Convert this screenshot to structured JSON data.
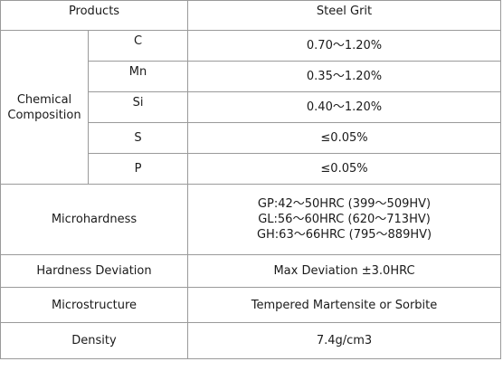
{
  "table": {
    "header": {
      "products": "Products",
      "steel_grit": "Steel Grit"
    },
    "chemical_composition": {
      "label_line1": "Chemical",
      "label_line2": "Composition",
      "elements": [
        {
          "symbol": "C",
          "value": "0.70～1.20%"
        },
        {
          "symbol": "Mn",
          "value": "0.35～1.20%"
        },
        {
          "symbol": "Si",
          "value": "0.40～1.20%"
        },
        {
          "symbol": "S",
          "value": "≤0.05%"
        },
        {
          "symbol": "P",
          "value": "≤0.05%"
        }
      ]
    },
    "microhardness": {
      "label": "Microhardness",
      "values": [
        "GP:42～50HRC (399～509HV)",
        "GL:56～60HRC (620～713HV)",
        "GH:63～66HRC (795～889HV)"
      ]
    },
    "hardness_deviation": {
      "label": "Hardness Deviation",
      "value": "Max Deviation ±3.0HRC"
    },
    "microstructure": {
      "label": "Microstructure",
      "value": "Tempered Martensite or Sorbite"
    },
    "density": {
      "label": "Density",
      "value": "7.4g/cm3"
    }
  }
}
